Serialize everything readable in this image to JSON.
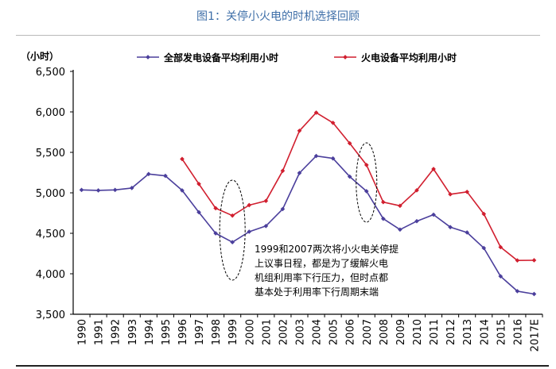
{
  "figure": {
    "caption": "图1：关停小火电的时机选择回顾"
  },
  "chart_data": {
    "type": "line",
    "ylabel": "（小时）",
    "ylim": [
      3500,
      6500
    ],
    "yticks": [
      3500,
      4000,
      4500,
      5000,
      5500,
      6000,
      6500
    ],
    "ytick_labels": [
      "3,500",
      "4,000",
      "4,500",
      "5,000",
      "5,500",
      "6,000",
      "6,500"
    ],
    "categories": [
      "1990",
      "1991",
      "1992",
      "1993",
      "1994",
      "1995",
      "1996",
      "1997",
      "1998",
      "1999",
      "2000",
      "2001",
      "2002",
      "2003",
      "2004",
      "2005",
      "2006",
      "2007",
      "2008",
      "2009",
      "2010",
      "2011",
      "2012",
      "2013",
      "2014",
      "2015",
      "2016",
      "2017E"
    ],
    "series": [
      {
        "name": "全部发电设备平均利用小时",
        "color": "#4b3f9c",
        "values": [
          5036,
          5030,
          5036,
          5060,
          5232,
          5210,
          5030,
          4760,
          4500,
          4390,
          4520,
          4590,
          4800,
          5245,
          5455,
          5425,
          5200,
          5020,
          4680,
          4546,
          4650,
          4730,
          4576,
          4510,
          4318,
          3969,
          3785,
          3750
        ]
      },
      {
        "name": "火电设备平均利用小时",
        "color": "#d11f2f",
        "values": [
          null,
          null,
          null,
          null,
          null,
          null,
          5418,
          5110,
          4810,
          4719,
          4848,
          4900,
          5272,
          5767,
          5991,
          5865,
          5612,
          5344,
          4885,
          4840,
          5031,
          5294,
          4982,
          5012,
          4739,
          4329,
          4165,
          4167
        ]
      }
    ],
    "annotations": [
      {
        "text_lines": [
          "1999和2007两次将小火电关停提",
          "上议事日程，都是为了缓解火电",
          "机组利用率下行压力，但时点都",
          "基本处于利用率下行周期末端"
        ]
      }
    ],
    "legend": "top",
    "grid": false
  }
}
